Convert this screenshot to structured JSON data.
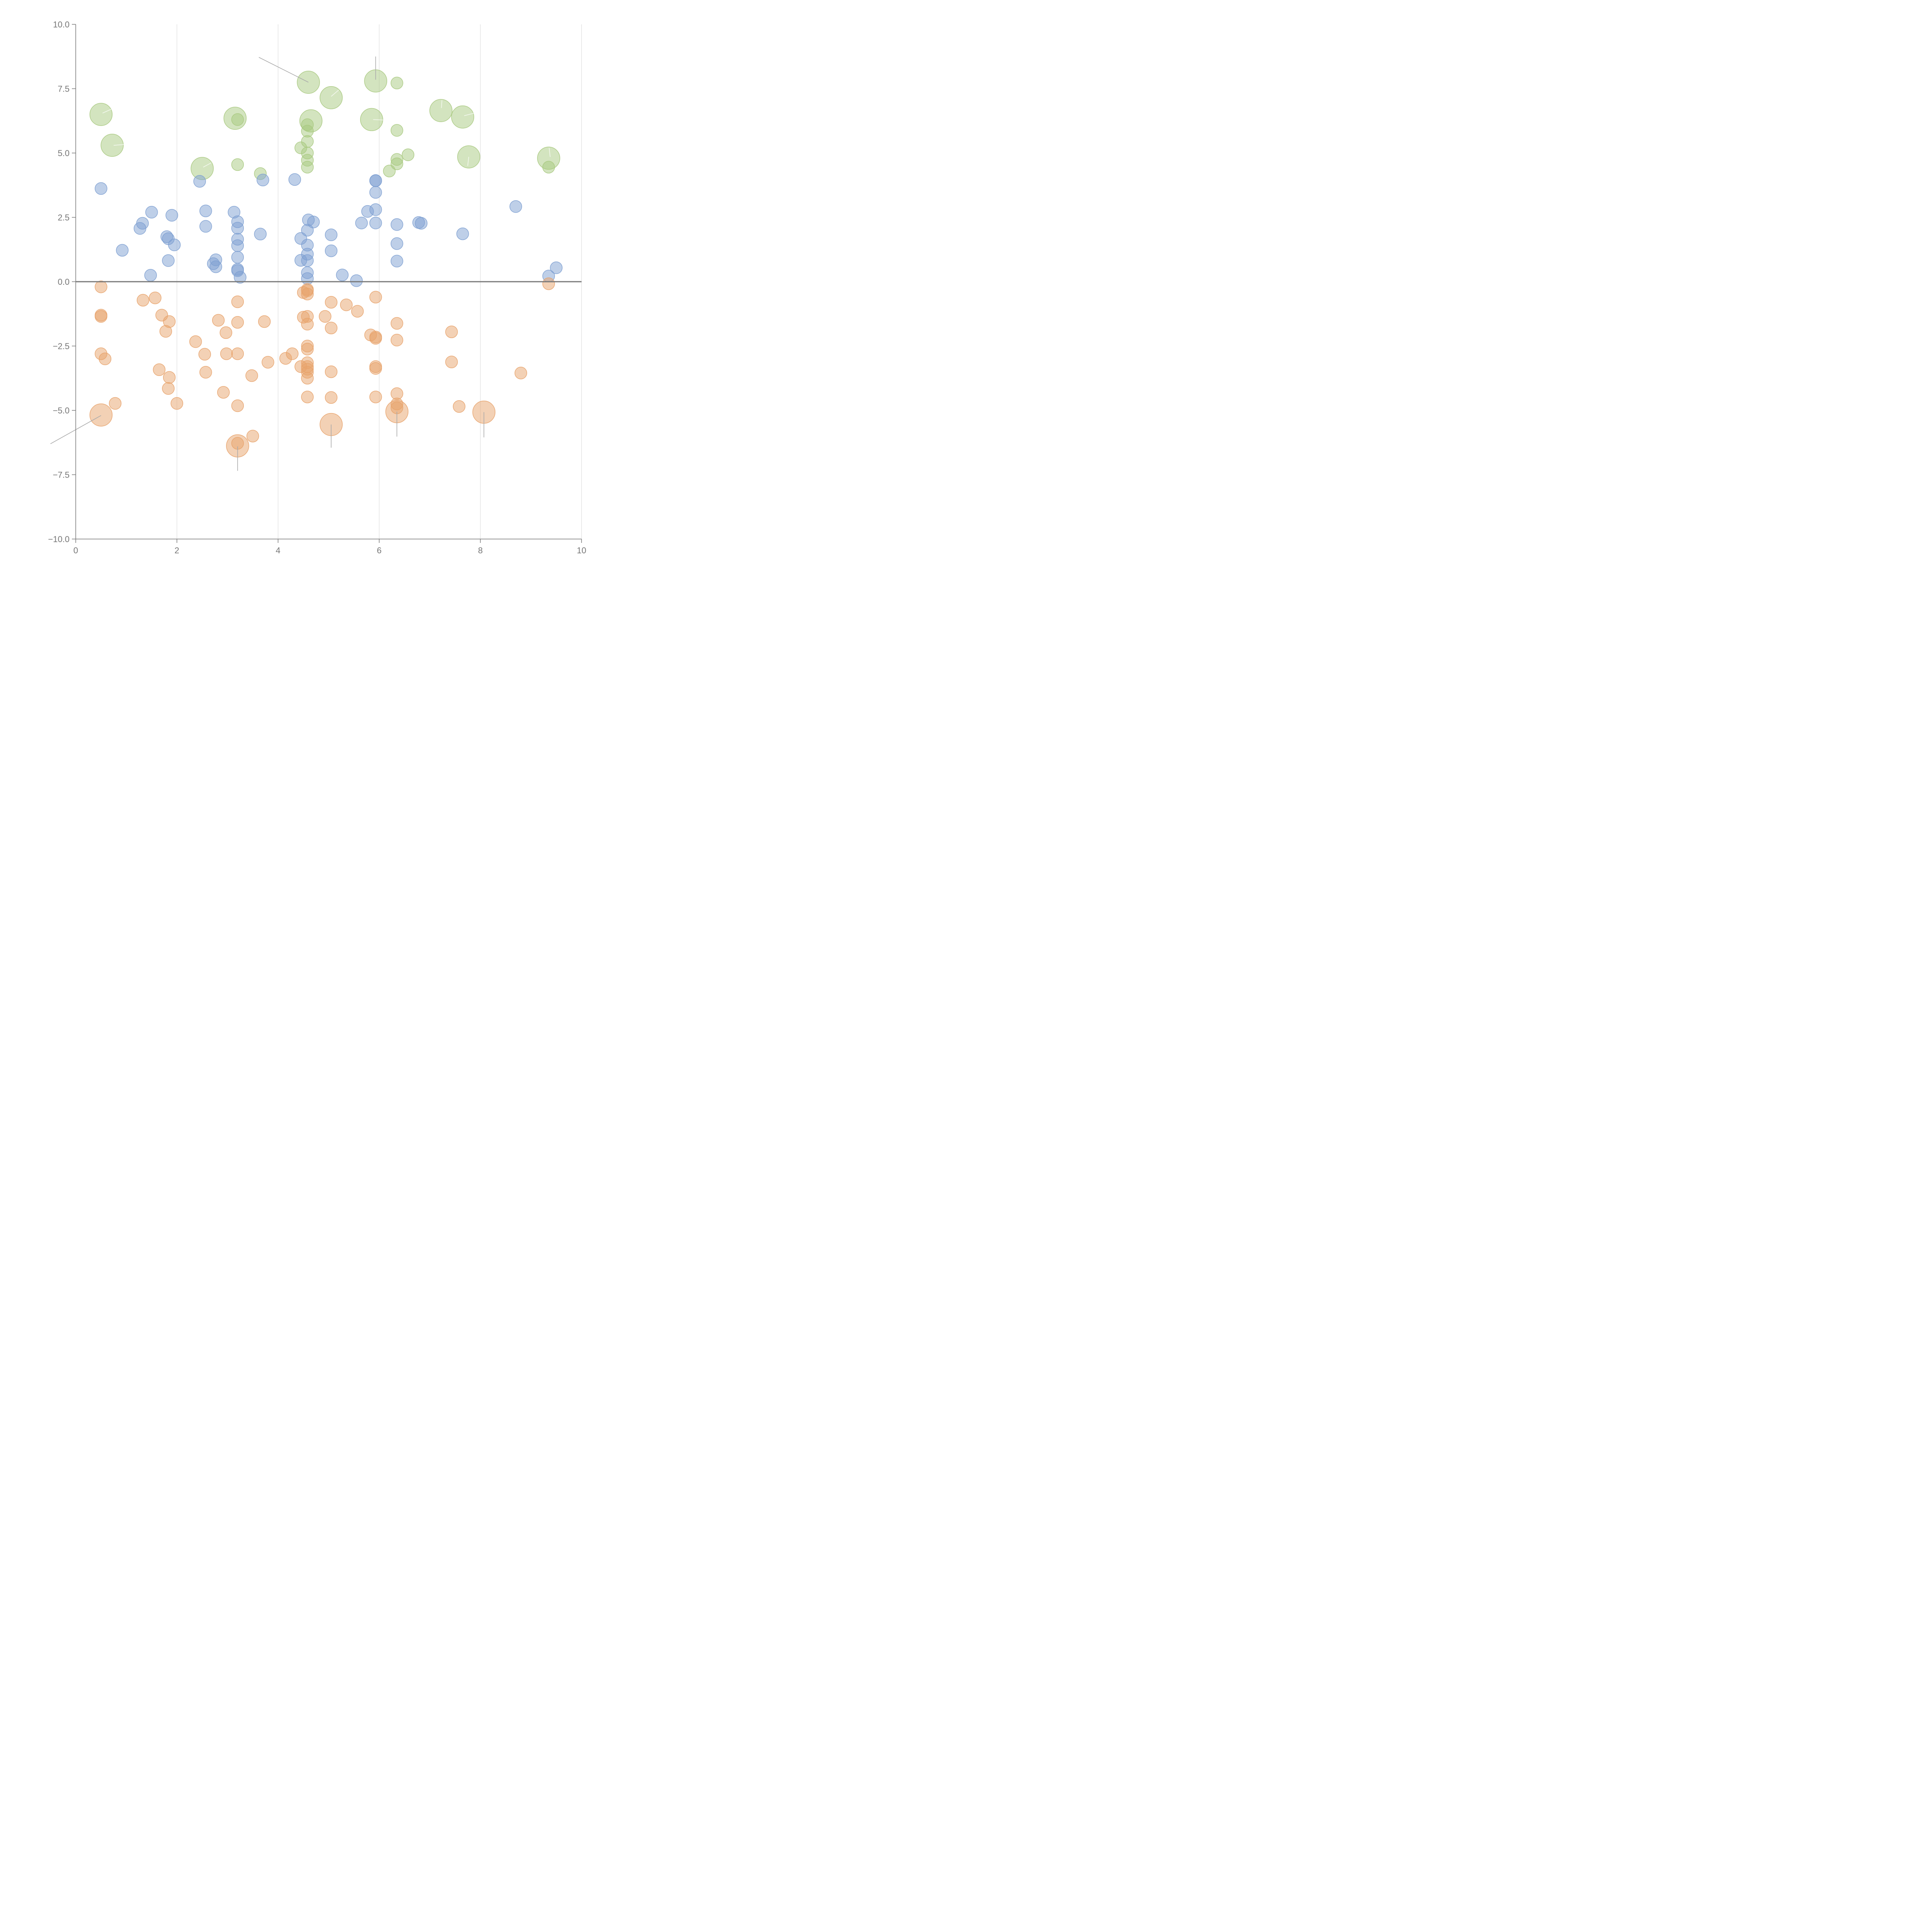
{
  "chart_data": {
    "type": "scatter",
    "title": "",
    "xlabel": "",
    "ylabel": "",
    "xlim": [
      0,
      10
    ],
    "ylim": [
      -10,
      10
    ],
    "x_ticks": [
      0,
      2,
      4,
      6,
      8,
      10
    ],
    "y_ticks": [
      -10,
      -7.5,
      -5,
      -2.5,
      0,
      2.5,
      5,
      7.5,
      10
    ],
    "x_tick_labels": [
      "0",
      "2",
      "4",
      "6",
      "8",
      "10"
    ],
    "y_tick_labels": [
      "−10.0",
      "−7.5",
      "−5.0",
      "−2.5",
      "0.0",
      "2.5",
      "5.0",
      "7.5",
      "10.0"
    ],
    "grid": "vertical",
    "zero_line": true,
    "legend": "none",
    "series": [
      {
        "color": "#a8c97f",
        "points": [
          [
            0.5,
            6.5,
            3
          ],
          [
            0.72,
            5.3,
            3
          ],
          [
            2.5,
            4.4,
            3
          ],
          [
            3.15,
            6.35,
            3
          ],
          [
            4.6,
            7.75,
            3
          ],
          [
            5.05,
            7.15,
            3
          ],
          [
            4.65,
            6.25,
            3
          ],
          [
            5.93,
            7.8,
            3
          ],
          [
            5.85,
            6.3,
            3
          ],
          [
            7.22,
            6.65,
            3
          ],
          [
            7.65,
            6.4,
            3
          ],
          [
            7.77,
            4.85,
            3
          ],
          [
            9.35,
            4.8,
            3
          ],
          [
            3.2,
            6.3,
            1
          ],
          [
            3.2,
            4.55,
            1
          ],
          [
            3.65,
            4.2,
            1
          ],
          [
            4.45,
            5.2,
            1
          ],
          [
            4.58,
            6.1,
            1
          ],
          [
            4.58,
            5.85,
            1
          ],
          [
            4.58,
            5.45,
            1
          ],
          [
            4.58,
            5.0,
            1
          ],
          [
            4.58,
            4.72,
            1
          ],
          [
            4.58,
            4.45,
            1
          ],
          [
            6.35,
            7.72,
            1
          ],
          [
            6.35,
            5.88,
            1
          ],
          [
            6.35,
            4.75,
            1
          ],
          [
            6.35,
            4.58,
            1
          ],
          [
            6.2,
            4.3,
            1
          ],
          [
            6.57,
            4.93,
            1
          ],
          [
            9.35,
            4.45,
            1
          ]
        ]
      },
      {
        "color": "#7ea0d2",
        "points": [
          [
            0.5,
            3.62,
            1
          ],
          [
            0.92,
            1.22,
            1
          ],
          [
            1.27,
            2.07,
            1
          ],
          [
            1.32,
            2.27,
            1
          ],
          [
            1.5,
            2.7,
            1
          ],
          [
            1.48,
            0.25,
            1
          ],
          [
            1.8,
            1.75,
            1
          ],
          [
            1.83,
            1.67,
            1
          ],
          [
            1.83,
            0.82,
            1
          ],
          [
            1.9,
            2.58,
            1
          ],
          [
            1.95,
            1.43,
            1
          ],
          [
            2.45,
            3.9,
            1
          ],
          [
            2.57,
            2.75,
            1
          ],
          [
            2.57,
            2.15,
            1
          ],
          [
            2.72,
            0.7,
            1
          ],
          [
            2.77,
            0.85,
            1
          ],
          [
            2.77,
            0.58,
            1
          ],
          [
            3.13,
            2.7,
            1
          ],
          [
            3.2,
            2.33,
            1
          ],
          [
            3.2,
            2.08,
            1
          ],
          [
            3.2,
            1.65,
            1
          ],
          [
            3.2,
            1.4,
            1
          ],
          [
            3.2,
            0.95,
            1
          ],
          [
            3.2,
            0.48,
            1
          ],
          [
            3.2,
            0.43,
            1
          ],
          [
            3.25,
            0.17,
            1
          ],
          [
            3.65,
            1.85,
            1
          ],
          [
            3.7,
            3.95,
            1
          ],
          [
            4.33,
            3.97,
            1
          ],
          [
            4.45,
            1.68,
            1
          ],
          [
            4.45,
            0.83,
            1
          ],
          [
            4.6,
            2.4,
            1
          ],
          [
            4.58,
            2.0,
            1
          ],
          [
            4.58,
            1.42,
            1
          ],
          [
            4.58,
            1.07,
            1
          ],
          [
            4.58,
            0.82,
            1
          ],
          [
            4.58,
            0.35,
            1
          ],
          [
            4.58,
            0.12,
            1
          ],
          [
            4.7,
            2.32,
            1
          ],
          [
            5.05,
            1.82,
            1
          ],
          [
            5.05,
            1.2,
            1
          ],
          [
            5.27,
            0.26,
            1
          ],
          [
            5.55,
            0.04,
            1
          ],
          [
            5.65,
            2.28,
            1
          ],
          [
            5.77,
            2.73,
            1
          ],
          [
            5.93,
            3.92,
            1
          ],
          [
            5.93,
            3.93,
            1
          ],
          [
            5.93,
            3.47,
            1
          ],
          [
            5.93,
            2.8,
            1
          ],
          [
            5.93,
            2.28,
            1
          ],
          [
            6.35,
            2.22,
            1
          ],
          [
            6.35,
            1.48,
            1
          ],
          [
            6.35,
            0.8,
            1
          ],
          [
            6.78,
            2.3,
            1
          ],
          [
            6.83,
            2.27,
            1
          ],
          [
            7.65,
            1.86,
            1
          ],
          [
            8.7,
            2.92,
            1
          ],
          [
            9.35,
            0.22,
            1
          ],
          [
            9.5,
            0.54,
            1
          ]
        ]
      },
      {
        "color": "#e8a36c",
        "points": [
          [
            0.5,
            -0.2,
            1
          ],
          [
            0.5,
            -1.3,
            1
          ],
          [
            0.5,
            -1.35,
            1
          ],
          [
            0.5,
            -2.8,
            1
          ],
          [
            0.58,
            -3.0,
            1
          ],
          [
            0.5,
            -5.18,
            3
          ],
          [
            0.78,
            -4.73,
            1
          ],
          [
            1.33,
            -0.72,
            1
          ],
          [
            1.57,
            -0.63,
            1
          ],
          [
            1.7,
            -1.3,
            1
          ],
          [
            1.85,
            -1.55,
            1
          ],
          [
            1.78,
            -1.93,
            1
          ],
          [
            1.65,
            -3.42,
            1
          ],
          [
            1.85,
            -3.72,
            1
          ],
          [
            1.83,
            -4.15,
            1
          ],
          [
            2.0,
            -4.73,
            1
          ],
          [
            2.37,
            -2.33,
            1
          ],
          [
            2.55,
            -2.82,
            1
          ],
          [
            2.57,
            -3.52,
            1
          ],
          [
            2.82,
            -1.5,
            1
          ],
          [
            2.97,
            -1.98,
            1
          ],
          [
            2.98,
            -2.8,
            1
          ],
          [
            2.92,
            -4.3,
            1
          ],
          [
            3.2,
            -0.78,
            1
          ],
          [
            3.2,
            -1.58,
            1
          ],
          [
            3.2,
            -2.8,
            1
          ],
          [
            3.2,
            -4.82,
            1
          ],
          [
            3.2,
            -6.38,
            3
          ],
          [
            3.2,
            -6.28,
            1
          ],
          [
            3.48,
            -3.65,
            1
          ],
          [
            3.5,
            -6.0,
            1
          ],
          [
            3.73,
            -1.55,
            1
          ],
          [
            3.8,
            -3.13,
            1
          ],
          [
            4.15,
            -2.98,
            1
          ],
          [
            4.28,
            -2.8,
            1
          ],
          [
            4.45,
            -3.3,
            1
          ],
          [
            4.5,
            -0.42,
            1
          ],
          [
            4.58,
            -0.35,
            1
          ],
          [
            4.58,
            -0.48,
            1
          ],
          [
            4.58,
            -0.3,
            1
          ],
          [
            4.5,
            -1.38,
            1
          ],
          [
            4.58,
            -1.35,
            1
          ],
          [
            4.58,
            -1.65,
            1
          ],
          [
            4.58,
            -2.5,
            1
          ],
          [
            4.58,
            -2.62,
            1
          ],
          [
            4.58,
            -3.15,
            1
          ],
          [
            4.58,
            -3.3,
            1
          ],
          [
            4.58,
            -3.4,
            1
          ],
          [
            4.58,
            -3.52,
            1
          ],
          [
            4.58,
            -3.75,
            1
          ],
          [
            4.58,
            -4.48,
            1
          ],
          [
            4.93,
            -1.35,
            1
          ],
          [
            5.05,
            -0.8,
            1
          ],
          [
            5.05,
            -1.8,
            1
          ],
          [
            5.05,
            -3.5,
            1
          ],
          [
            5.05,
            -4.5,
            1
          ],
          [
            5.05,
            -5.55,
            3
          ],
          [
            5.35,
            -0.9,
            1
          ],
          [
            5.57,
            -1.15,
            1
          ],
          [
            5.83,
            -2.07,
            1
          ],
          [
            5.93,
            -0.6,
            1
          ],
          [
            5.93,
            -2.15,
            1
          ],
          [
            5.93,
            -2.2,
            1
          ],
          [
            5.93,
            -3.3,
            1
          ],
          [
            5.93,
            -3.37,
            1
          ],
          [
            5.93,
            -4.48,
            1
          ],
          [
            6.35,
            -1.62,
            1
          ],
          [
            6.35,
            -2.27,
            1
          ],
          [
            6.35,
            -4.35,
            1
          ],
          [
            6.35,
            -4.75,
            1
          ],
          [
            6.35,
            -4.9,
            1
          ],
          [
            6.35,
            -5.05,
            3
          ],
          [
            7.43,
            -1.95,
            1
          ],
          [
            7.43,
            -3.12,
            1
          ],
          [
            7.58,
            -4.85,
            1
          ],
          [
            8.07,
            -5.07,
            3
          ],
          [
            8.8,
            -3.55,
            1
          ],
          [
            9.35,
            -0.08,
            1
          ]
        ]
      }
    ]
  }
}
